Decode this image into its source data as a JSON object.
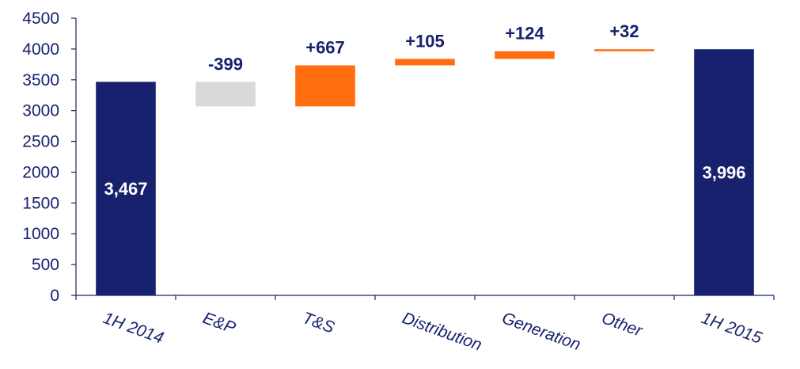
{
  "chart_data": {
    "type": "bar",
    "subtype": "waterfall",
    "title": "",
    "xlabel": "",
    "ylabel": "",
    "ylim": [
      0,
      4500
    ],
    "yticks": [
      0,
      500,
      1000,
      1500,
      2000,
      2500,
      3000,
      3500,
      4000,
      4500
    ],
    "grid": false,
    "legend": "none",
    "categories": [
      "1H 2014",
      "E&P",
      "T&S",
      "Distribution",
      "Generation",
      "Other",
      "1H 2015"
    ],
    "steps": [
      {
        "category": "1H 2014",
        "kind": "total",
        "value": 3467,
        "label": "3,467",
        "color": "#17216e"
      },
      {
        "category": "E&P",
        "kind": "delta",
        "value": -399,
        "label": "-399",
        "color": "#d9d9d9"
      },
      {
        "category": "T&S",
        "kind": "delta",
        "value": 667,
        "label": "+667",
        "color": "#ff6d0f"
      },
      {
        "category": "Distribution",
        "kind": "delta",
        "value": 105,
        "label": "+105",
        "color": "#ff6d0f"
      },
      {
        "category": "Generation",
        "kind": "delta",
        "value": 124,
        "label": "+124",
        "color": "#ff6d0f"
      },
      {
        "category": "Other",
        "kind": "delta",
        "value": 32,
        "label": "+32",
        "color": "#ff6d0f"
      },
      {
        "category": "1H 2015",
        "kind": "total",
        "value": 3996,
        "label": "3,996",
        "color": "#17216e"
      }
    ],
    "axis_color": "#17216e",
    "text_color": "#17216e"
  }
}
